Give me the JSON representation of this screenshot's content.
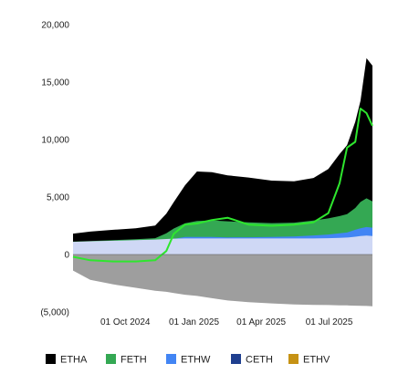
{
  "chart_data": {
    "type": "area",
    "title": "",
    "xlabel": "",
    "ylabel": "",
    "ylim": [
      -5000,
      20000
    ],
    "yticks": [
      20000,
      15000,
      10000,
      5000,
      0,
      -5000
    ],
    "ytick_labels": [
      "20,000",
      "15,000",
      "10,000",
      "5,000",
      "0",
      "(5,000)"
    ],
    "xlim": [
      "2024-07-23",
      "2025-08-28"
    ],
    "xticks": [
      "2024-10-01",
      "2025-01-01",
      "2025-04-01",
      "2025-07-01"
    ],
    "xtick_labels": [
      "01 Oct 2024",
      "01 Jan 2025",
      "01 Apr 2025",
      "01 Jul 2025"
    ],
    "grid": false,
    "legend_position": "bottom",
    "legend": [
      {
        "name": "ETHA",
        "color": "#000000"
      },
      {
        "name": "FETH",
        "color": "#34a853"
      },
      {
        "name": "ETHW",
        "color": "#4285f4"
      },
      {
        "name": "CETH",
        "color": "#1f3f8f"
      },
      {
        "name": "ETHV",
        "color": "#c69214"
      }
    ],
    "x": [
      "2024-07-23",
      "2024-08-15",
      "2024-09-15",
      "2024-10-15",
      "2024-11-10",
      "2024-11-25",
      "2024-12-05",
      "2024-12-20",
      "2025-01-05",
      "2025-01-25",
      "2025-02-15",
      "2025-03-15",
      "2025-04-15",
      "2025-05-15",
      "2025-06-10",
      "2025-06-30",
      "2025-07-15",
      "2025-07-25",
      "2025-08-05",
      "2025-08-12",
      "2025-08-20",
      "2025-08-28"
    ],
    "series": [
      {
        "name": "ETHV",
        "color": "#c69214",
        "values": [
          300,
          330,
          360,
          390,
          420,
          500,
          580,
          700,
          700,
          700,
          680,
          690,
          720,
          750,
          820,
          880,
          950,
          1000,
          1200,
          1300,
          1400,
          1350
        ]
      },
      {
        "name": "CETH",
        "color": "#1f3f8f",
        "values": [
          120,
          125,
          130,
          135,
          140,
          150,
          160,
          170,
          170,
          170,
          170,
          170,
          170,
          170,
          175,
          180,
          190,
          195,
          200,
          205,
          210,
          210
        ]
      },
      {
        "name": "ETHW",
        "color": "#4285f4",
        "values": [
          500,
          520,
          540,
          560,
          580,
          600,
          620,
          650,
          650,
          650,
          640,
          640,
          640,
          650,
          660,
          680,
          700,
          720,
          750,
          770,
          780,
          770
        ]
      },
      {
        "name": "FETH",
        "color": "#34a853",
        "values": [
          200,
          200,
          220,
          250,
          280,
          600,
          900,
          1200,
          1400,
          1450,
          1400,
          1300,
          1200,
          1200,
          1300,
          1400,
          1500,
          1600,
          1900,
          2300,
          2500,
          2300
        ]
      },
      {
        "name": "ETHA",
        "color": "#000000",
        "values": [
          700,
          820,
          900,
          950,
          1100,
          1700,
          2300,
          3300,
          4300,
          4200,
          4000,
          3900,
          3700,
          3600,
          3700,
          4300,
          5400,
          6000,
          7500,
          8800,
          12200,
          11800
        ]
      },
      {
        "name": "",
        "color": "#9e9e9e",
        "values": [
          -1400,
          -2200,
          -2600,
          -2900,
          -3150,
          -3250,
          -3350,
          -3500,
          -3600,
          -3800,
          -4000,
          -4150,
          -4250,
          -4350,
          -4380,
          -4400,
          -4420,
          -4430,
          -4450,
          -4470,
          -4480,
          -4500
        ]
      },
      {
        "name": "",
        "color": "#cfd8f5",
        "values": [
          1100,
          1150,
          1200,
          1250,
          1300,
          1350,
          1380,
          1400,
          1400,
          1400,
          1400,
          1400,
          1400,
          1400,
          1400,
          1420,
          1450,
          1480,
          1550,
          1600,
          1650,
          1600
        ]
      }
    ],
    "line_series": {
      "name": "",
      "color": "#2ee62e",
      "values": [
        -200,
        -500,
        -600,
        -600,
        -500,
        300,
        1800,
        2600,
        2700,
        3000,
        3200,
        2600,
        2500,
        2600,
        2800,
        3600,
        6200,
        9300,
        9800,
        12700,
        12300,
        11200
      ]
    }
  }
}
